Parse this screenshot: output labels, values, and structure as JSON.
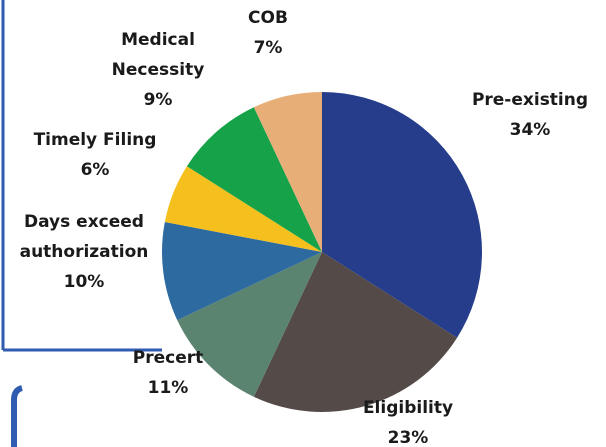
{
  "chart_data": {
    "type": "pie",
    "categories": [
      "Pre-existing",
      "Eligibility",
      "Precert",
      "Days exceed authorization",
      "Timely Filing",
      "Medical Necessity",
      "COB"
    ],
    "values": [
      34,
      23,
      11,
      10,
      6,
      9,
      7
    ],
    "value_labels": [
      "34%",
      "23%",
      "11%",
      "10%",
      "6%",
      "9%",
      "7%"
    ],
    "colors": [
      "#253d8a",
      "#544a48",
      "#5a8470",
      "#2d6aa0",
      "#f5c01e",
      "#16a249",
      "#e8ae78"
    ]
  }
}
